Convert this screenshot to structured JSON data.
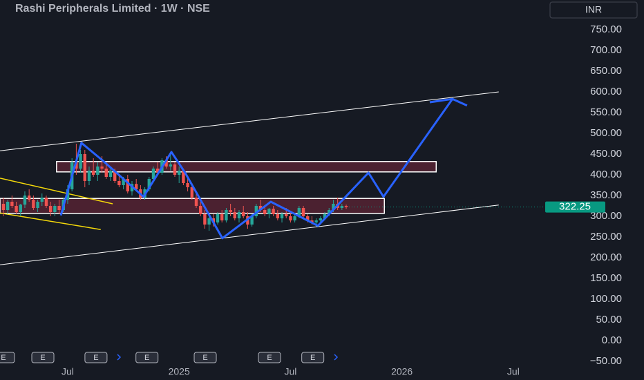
{
  "chart_data": {
    "type": "candlestick",
    "title": "Rashi Peripherals Limited · 1W · NSE",
    "currency": "INR",
    "last_price": 322.25,
    "up_color": "#26a69a",
    "down_color": "#ef5350",
    "ylim": [
      -60,
      760
    ],
    "yticks": [
      {
        "value": 750,
        "label": "750.00"
      },
      {
        "value": 700,
        "label": "700.00"
      },
      {
        "value": 650,
        "label": "650.00"
      },
      {
        "value": 600,
        "label": "600.00"
      },
      {
        "value": 550,
        "label": "550.00"
      },
      {
        "value": 500,
        "label": "500.00"
      },
      {
        "value": 450,
        "label": "450.00"
      },
      {
        "value": 400,
        "label": "400.00"
      },
      {
        "value": 350,
        "label": "350.00"
      },
      {
        "value": 300,
        "label": "300.00"
      },
      {
        "value": 250,
        "label": "250.00"
      },
      {
        "value": 200,
        "label": "200.00"
      },
      {
        "value": 150,
        "label": "150.00"
      },
      {
        "value": 100,
        "label": "100.00"
      },
      {
        "value": 50,
        "label": "50.00"
      },
      {
        "value": 0,
        "label": "0.00"
      },
      {
        "value": -50,
        "label": "−50.00"
      }
    ],
    "xlim": [
      -15.8,
      111.6
    ],
    "xticks": [
      {
        "value": 0,
        "label": "Jul"
      },
      {
        "value": 26,
        "label": "2025"
      },
      {
        "value": 52,
        "label": "Jul"
      },
      {
        "value": 78,
        "label": "2026"
      },
      {
        "value": 104,
        "label": "Jul"
      }
    ],
    "candles": [
      [
        -15,
        330,
        345,
        300,
        315
      ],
      [
        -14,
        315,
        340,
        305,
        335
      ],
      [
        -13,
        335,
        350,
        320,
        325
      ],
      [
        -12,
        325,
        335,
        305,
        310
      ],
      [
        -11,
        310,
        330,
        300,
        328
      ],
      [
        -10,
        328,
        360,
        320,
        350
      ],
      [
        -9,
        350,
        365,
        335,
        340
      ],
      [
        -8,
        340,
        350,
        315,
        320
      ],
      [
        -7,
        320,
        340,
        310,
        335
      ],
      [
        -6,
        335,
        355,
        325,
        345
      ],
      [
        -5,
        345,
        350,
        320,
        325
      ],
      [
        -4,
        325,
        335,
        300,
        310
      ],
      [
        -3,
        310,
        330,
        300,
        325
      ],
      [
        -2,
        325,
        340,
        305,
        315
      ],
      [
        -1,
        315,
        345,
        310,
        340
      ],
      [
        0,
        340,
        375,
        330,
        365
      ],
      [
        1,
        365,
        440,
        360,
        430
      ],
      [
        2,
        430,
        475,
        400,
        415
      ],
      [
        3,
        415,
        460,
        405,
        450
      ],
      [
        4,
        450,
        460,
        370,
        385
      ],
      [
        5,
        385,
        420,
        375,
        410
      ],
      [
        6,
        410,
        440,
        395,
        400
      ],
      [
        7,
        400,
        430,
        385,
        420
      ],
      [
        8,
        420,
        445,
        405,
        415
      ],
      [
        9,
        415,
        430,
        390,
        395
      ],
      [
        10,
        395,
        420,
        385,
        410
      ],
      [
        11,
        410,
        415,
        380,
        385
      ],
      [
        12,
        385,
        400,
        370,
        375
      ],
      [
        13,
        375,
        395,
        365,
        390
      ],
      [
        14,
        390,
        400,
        355,
        360
      ],
      [
        15,
        360,
        385,
        350,
        378
      ],
      [
        16,
        378,
        390,
        360,
        365
      ],
      [
        17,
        365,
        375,
        340,
        345
      ],
      [
        18,
        345,
        370,
        340,
        365
      ],
      [
        19,
        365,
        395,
        360,
        390
      ],
      [
        20,
        390,
        420,
        385,
        415
      ],
      [
        21,
        415,
        430,
        400,
        405
      ],
      [
        22,
        405,
        440,
        400,
        435
      ],
      [
        23,
        435,
        445,
        415,
        420
      ],
      [
        24,
        420,
        450,
        410,
        425
      ],
      [
        25,
        425,
        430,
        395,
        400
      ],
      [
        26,
        400,
        420,
        380,
        410
      ],
      [
        27,
        410,
        415,
        375,
        380
      ],
      [
        28,
        380,
        395,
        360,
        370
      ],
      [
        29,
        370,
        380,
        340,
        345
      ],
      [
        30,
        345,
        355,
        320,
        325
      ],
      [
        31,
        325,
        335,
        300,
        305
      ],
      [
        32,
        305,
        315,
        270,
        280
      ],
      [
        33,
        280,
        300,
        265,
        295
      ],
      [
        34,
        295,
        305,
        275,
        285
      ],
      [
        35,
        285,
        310,
        280,
        305
      ],
      [
        36,
        305,
        315,
        285,
        290
      ],
      [
        37,
        290,
        320,
        285,
        315
      ],
      [
        38,
        315,
        330,
        300,
        310
      ],
      [
        39,
        310,
        320,
        290,
        295
      ],
      [
        40,
        295,
        315,
        285,
        310
      ],
      [
        41,
        310,
        325,
        295,
        300
      ],
      [
        42,
        300,
        310,
        270,
        280
      ],
      [
        43,
        280,
        305,
        275,
        300
      ],
      [
        44,
        300,
        330,
        295,
        325
      ],
      [
        45,
        325,
        340,
        310,
        315
      ],
      [
        46,
        315,
        325,
        300,
        305
      ],
      [
        47,
        305,
        320,
        295,
        318
      ],
      [
        48,
        318,
        325,
        300,
        305
      ],
      [
        49,
        305,
        315,
        290,
        295
      ],
      [
        50,
        295,
        310,
        285,
        305
      ],
      [
        51,
        305,
        320,
        295,
        300
      ],
      [
        52,
        300,
        310,
        285,
        290
      ],
      [
        53,
        290,
        305,
        285,
        300
      ],
      [
        54,
        300,
        325,
        295,
        320
      ],
      [
        55,
        320,
        325,
        295,
        300
      ],
      [
        56,
        300,
        305,
        285,
        290
      ],
      [
        57,
        290,
        300,
        280,
        285
      ],
      [
        58,
        285,
        295,
        275,
        290
      ],
      [
        59,
        290,
        300,
        280,
        295
      ],
      [
        60,
        295,
        310,
        290,
        305
      ],
      [
        61,
        305,
        320,
        300,
        315
      ],
      [
        62,
        315,
        340,
        310,
        330
      ],
      [
        63,
        330,
        345,
        315,
        320
      ],
      [
        64,
        320,
        330,
        315,
        325
      ],
      [
        65,
        325,
        328,
        318,
        322.25
      ]
    ],
    "projection": {
      "color": "#2962ff",
      "points": [
        [
          -1.6,
          302
        ],
        [
          3.2,
          477
        ],
        [
          8.1,
          435
        ],
        [
          17.7,
          347
        ],
        [
          24.2,
          455
        ],
        [
          27.4,
          405
        ],
        [
          36.1,
          247
        ],
        [
          47.4,
          335
        ],
        [
          58.4,
          277
        ],
        [
          64.4,
          342
        ],
        [
          70.2,
          405
        ],
        [
          73.7,
          347
        ],
        [
          89.8,
          583
        ],
        [
          93.2,
          567
        ]
      ],
      "arrow": [
        [
          84.5,
          575
        ],
        [
          89.8,
          583
        ]
      ]
    },
    "channel": {
      "color": "#ffffff",
      "lines": [
        [
          [
            -15.8,
            458
          ],
          [
            100.6,
            600
          ]
        ],
        [
          [
            -15.8,
            183
          ],
          [
            100.6,
            327
          ]
        ]
      ]
    },
    "wedge": {
      "color": "#f5d90a",
      "lines": [
        [
          [
            -15.8,
            392
          ],
          [
            10.5,
            330
          ]
        ],
        [
          [
            -15.8,
            308
          ],
          [
            7.7,
            268
          ]
        ]
      ]
    },
    "zones": [
      [
        -2.6,
        86,
        407,
        432
      ],
      [
        -15.8,
        73.9,
        307,
        343
      ]
    ],
    "earnings": {
      "label": "E",
      "weeks": [
        -15,
        -5.8,
        6.6,
        18.5,
        32.1,
        47.1,
        57.2
      ]
    }
  }
}
